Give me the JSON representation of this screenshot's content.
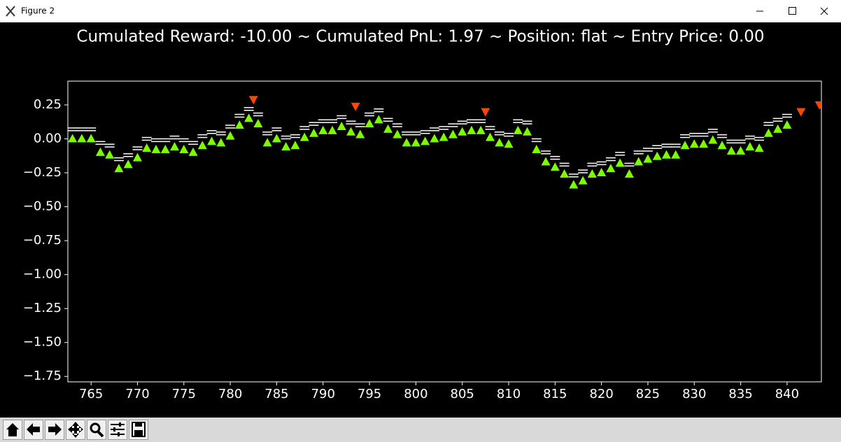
{
  "window_title": "Figure 2",
  "chart_data": {
    "type": "scatter",
    "title": "Cumulated Reward: -10.00 ~ Cumulated PnL: 1.97 ~ Position: flat ~ Entry Price: 0.00",
    "xlim": [
      762.5,
      843.7
    ],
    "ylim": [
      -1.79,
      0.425
    ],
    "xticks": [
      765,
      770,
      775,
      780,
      785,
      790,
      795,
      800,
      805,
      810,
      815,
      820,
      825,
      830,
      835,
      840
    ],
    "yticks": [
      0.25,
      {
        "value": 0,
        "label": "0.00"
      },
      {
        "value": -0.25,
        "label": "−0.25"
      },
      {
        "value": -0.5,
        "label": "−0.50"
      },
      {
        "value": -0.75,
        "label": "−0.75"
      },
      {
        "value": -1,
        "label": "−1.00"
      },
      {
        "value": -1.25,
        "label": "−1.25"
      },
      {
        "value": -1.5,
        "label": "−1.50"
      },
      {
        "value": -1.75,
        "label": "−1.75"
      }
    ],
    "x": [
      763,
      764,
      765,
      766,
      767,
      768,
      769,
      770,
      771,
      772,
      773,
      774,
      775,
      776,
      777,
      778,
      779,
      780,
      781,
      782,
      783,
      784,
      785,
      786,
      787,
      788,
      789,
      790,
      791,
      792,
      793,
      794,
      795,
      796,
      797,
      798,
      799,
      800,
      801,
      802,
      803,
      804,
      805,
      806,
      807,
      808,
      809,
      810,
      811,
      812,
      813,
      814,
      815,
      816,
      817,
      818,
      819,
      820,
      821,
      822,
      823,
      824,
      825,
      826,
      827,
      828,
      829,
      830,
      831,
      832,
      833,
      834,
      835,
      836,
      837,
      838,
      839,
      840
    ],
    "series": [
      {
        "color": "#ffffff",
        "marker": "_",
        "values": [
          0.08,
          0.08,
          0.08,
          -0.02,
          -0.04,
          -0.14,
          -0.11,
          -0.06,
          0.01,
          0,
          0,
          0.02,
          0,
          -0.02,
          0.03,
          0.06,
          0.05,
          0.1,
          0.18,
          0.23,
          0.19,
          0.05,
          0.08,
          0.02,
          0.03,
          0.09,
          0.12,
          0.14,
          0.14,
          0.17,
          0.13,
          0.11,
          0.19,
          0.22,
          0.15,
          0.11,
          0.05,
          0.05,
          0.06,
          0.08,
          0.09,
          0.11,
          0.13,
          0.14,
          0.14,
          0.09,
          0.05,
          0.04,
          0.14,
          0.13,
          0,
          -0.09,
          -0.13,
          -0.18,
          -0.26,
          -0.23,
          -0.18,
          -0.17,
          -0.14,
          -0.1,
          -0.18,
          -0.09,
          -0.07,
          -0.05,
          -0.04,
          -0.04,
          0.03,
          0.04,
          0.04,
          0.07,
          0.03,
          -0.01,
          -0.01,
          0.02,
          0.01,
          0.12,
          0.15,
          0.18
        ]
      },
      {
        "color": "#ffffff",
        "marker": "_",
        "values": [
          0.06,
          0.06,
          0.06,
          -0.04,
          -0.06,
          -0.16,
          -0.13,
          -0.08,
          -0.01,
          -0.02,
          -0.02,
          0,
          -0.02,
          -0.04,
          0.01,
          0.04,
          0.03,
          0.08,
          0.16,
          0.21,
          0.17,
          0.03,
          0.06,
          0,
          0.01,
          0.07,
          0.1,
          0.12,
          0.12,
          0.15,
          0.11,
          0.09,
          0.17,
          0.2,
          0.13,
          0.09,
          0.03,
          0.03,
          0.04,
          0.06,
          0.07,
          0.09,
          0.11,
          0.12,
          0.12,
          0.07,
          0.03,
          0.02,
          0.12,
          0.11,
          -0.02,
          -0.11,
          -0.15,
          -0.2,
          -0.28,
          -0.25,
          -0.2,
          -0.19,
          -0.16,
          -0.12,
          -0.2,
          -0.11,
          -0.09,
          -0.07,
          -0.06,
          -0.06,
          0.01,
          0.02,
          0.02,
          0.05,
          0.01,
          -0.03,
          -0.03,
          0,
          -0.01,
          0.1,
          0.13,
          0.16
        ]
      },
      {
        "color": "#7cfc00",
        "marker": "^",
        "values": [
          0,
          0,
          0,
          -0.1,
          -0.12,
          -0.22,
          -0.19,
          -0.14,
          -0.07,
          -0.08,
          -0.08,
          -0.06,
          -0.08,
          -0.1,
          -0.05,
          -0.02,
          -0.03,
          0.02,
          0.1,
          0.15,
          0.11,
          -0.03,
          0,
          -0.06,
          -0.05,
          0.01,
          0.04,
          0.06,
          0.06,
          0.09,
          0.05,
          0.03,
          0.11,
          0.14,
          0.07,
          0.03,
          -0.03,
          -0.03,
          -0.02,
          0,
          0.01,
          0.03,
          0.05,
          0.06,
          0.06,
          0.01,
          -0.03,
          -0.04,
          0.06,
          0.05,
          -0.08,
          -0.17,
          -0.21,
          -0.26,
          -0.34,
          -0.31,
          -0.26,
          -0.25,
          -0.22,
          -0.18,
          -0.26,
          -0.17,
          -0.15,
          -0.13,
          -0.12,
          -0.12,
          -0.05,
          -0.04,
          -0.04,
          -0.01,
          -0.05,
          -0.09,
          -0.09,
          -0.06,
          -0.07,
          0.04,
          0.07,
          0.1
        ]
      },
      {
        "color": "#ff4500",
        "marker": "v",
        "x": [
          782.5,
          793.5,
          807.5,
          841.5,
          843.5
        ],
        "values": [
          0.29,
          0.24,
          0.2,
          0.2,
          0.25
        ]
      }
    ]
  }
}
